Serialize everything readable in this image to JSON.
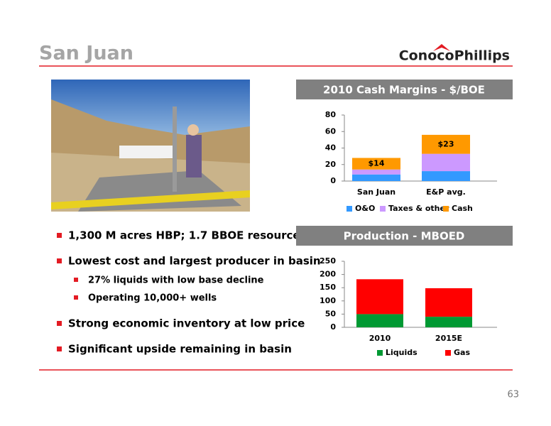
{
  "title": "San Juan",
  "logo": "ConocoPhillips",
  "bullets": [
    {
      "text": "1,300 M acres HBP; 1.7 BBOE resource",
      "level": 1
    },
    {
      "text": "Lowest cost and largest producer in basin",
      "level": 1
    },
    {
      "text": "27% liquids with low base decline",
      "level": 2
    },
    {
      "text": "Operating 10,000+ wells",
      "level": 2
    },
    {
      "text": "Strong economic inventory at low price",
      "level": 1
    },
    {
      "text": "Significant upside remaining in basin",
      "level": 1
    }
  ],
  "page_number": "63",
  "chart_data": [
    {
      "type": "stacked_bar",
      "title": "2010 Cash Margins - $/BOE",
      "categories": [
        "San Juan",
        "E&P avg."
      ],
      "series": [
        {
          "name": "O&O",
          "color": "#3399ff",
          "values": [
            8,
            12
          ]
        },
        {
          "name": "Taxes & other",
          "color": "#cc99ff",
          "values": [
            6,
            21
          ]
        },
        {
          "name": "Cash",
          "color": "#ff9900",
          "values": [
            14,
            23
          ],
          "value_labels": [
            "$14",
            "$23"
          ]
        }
      ],
      "ylim": [
        0,
        80
      ],
      "yticks": [
        0,
        20,
        40,
        60,
        80
      ],
      "grid": false
    },
    {
      "type": "stacked_bar",
      "title": "Production - MBOED",
      "categories": [
        "2010",
        "2015E"
      ],
      "series": [
        {
          "name": "Liquids",
          "color": "#009933",
          "values": [
            50,
            40
          ]
        },
        {
          "name": "Gas",
          "color": "#ff0000",
          "values": [
            132,
            108
          ]
        }
      ],
      "ylim": [
        0,
        250
      ],
      "yticks": [
        0,
        50,
        100,
        150,
        200,
        250
      ],
      "grid": false
    }
  ]
}
